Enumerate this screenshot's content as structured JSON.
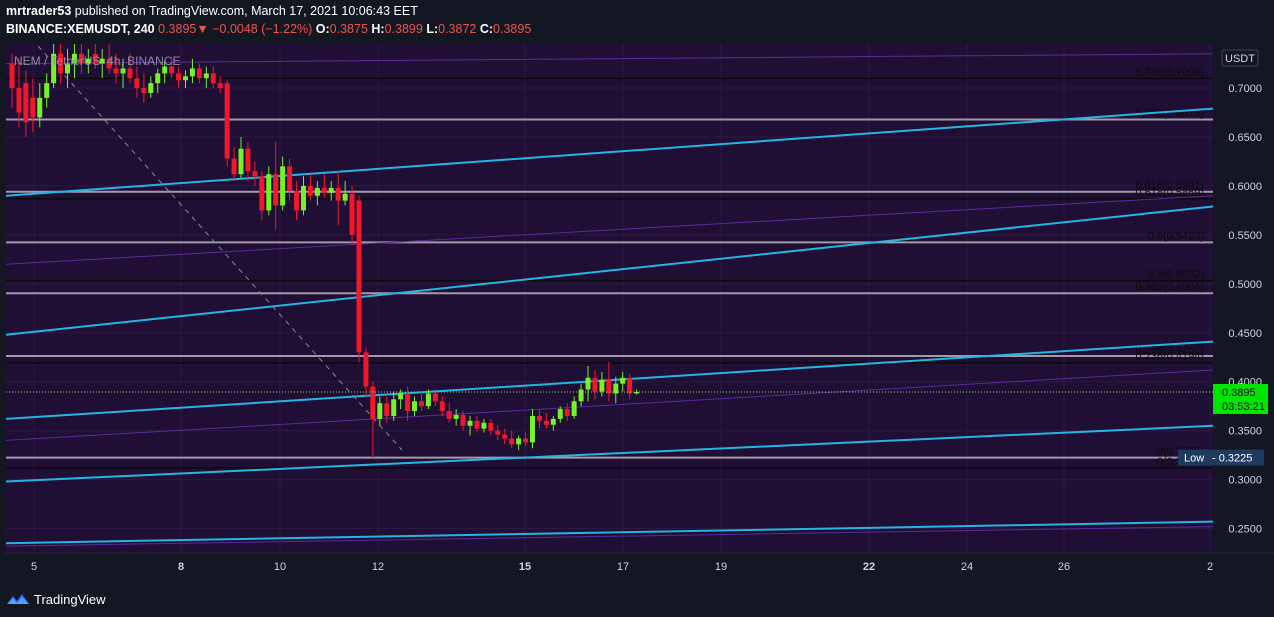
{
  "header": {
    "publisher": "mrtrader53",
    "published_text": " published on TradingView.com, March 17, 2021 10:06:43 EET",
    "symbol": "BINANCE:XEMUSDT, 240",
    "price": "0.3895",
    "change": "−0.0048 (−1.22%)",
    "o_label": "O:",
    "o_value": "0.3875",
    "h_label": "H:",
    "h_value": "0.3899",
    "l_label": "L:",
    "l_value": "0.3872",
    "c_label": "C:",
    "c_value": "0.3895"
  },
  "chart_title": "NEM / TetherUS, 4h, BINANCE",
  "currency_label": "USDT",
  "last_price": {
    "value": "0.3895",
    "countdown": "03:53:21",
    "color": "#00e600"
  },
  "low_label": {
    "label": "Low",
    "value": "0.3225"
  },
  "footer": {
    "brand": "TradingView"
  },
  "chart_data": {
    "type": "candlestick",
    "y_ticks": [
      "0.7000",
      "0.6500",
      "0.6000",
      "0.5500",
      "0.5000",
      "0.4500",
      "0.4000",
      "0.3500",
      "0.3000",
      "0.2500"
    ],
    "x_ticks": [
      "5",
      "8",
      "10",
      "12",
      "15",
      "17",
      "19",
      "22",
      "24",
      "26",
      "2"
    ],
    "ylim": [
      0.225,
      0.745
    ],
    "fib_levels": [
      {
        "label": "0.786(0.7099)",
        "value": 0.7099
      },
      {
        "label": "0.786(0.6679)",
        "value": 0.6679
      },
      {
        "label": "0.618(0.5941)",
        "value": 0.5941
      },
      {
        "label": "0.618(0.5869)",
        "value": 0.5869
      },
      {
        "label": "0.5(0.5423)",
        "value": 0.5423
      },
      {
        "label": "0.5(0.5032)",
        "value": 0.5032
      },
      {
        "label": "0.382(0.4904)",
        "value": 0.4904
      },
      {
        "label": "0.236(0.4262)",
        "value": 0.4262
      },
      {
        "label": "0.236(0.4194)",
        "value": 0.4194
      },
      {
        "label": "0(0.3225)",
        "value": 0.3225
      },
      {
        "label": "0(0.3120)",
        "value": 0.312
      }
    ],
    "candles": [
      {
        "o": 0.725,
        "h": 0.735,
        "l": 0.68,
        "c": 0.7
      },
      {
        "o": 0.7,
        "h": 0.73,
        "l": 0.66,
        "c": 0.675
      },
      {
        "o": 0.705,
        "h": 0.718,
        "l": 0.65,
        "c": 0.665
      },
      {
        "o": 0.69,
        "h": 0.71,
        "l": 0.655,
        "c": 0.67
      },
      {
        "o": 0.67,
        "h": 0.705,
        "l": 0.66,
        "c": 0.69
      },
      {
        "o": 0.69,
        "h": 0.715,
        "l": 0.68,
        "c": 0.705
      },
      {
        "o": 0.705,
        "h": 0.745,
        "l": 0.7,
        "c": 0.735
      },
      {
        "o": 0.735,
        "h": 0.745,
        "l": 0.705,
        "c": 0.715
      },
      {
        "o": 0.715,
        "h": 0.74,
        "l": 0.7,
        "c": 0.725
      },
      {
        "o": 0.725,
        "h": 0.745,
        "l": 0.71,
        "c": 0.735
      },
      {
        "o": 0.735,
        "h": 0.745,
        "l": 0.715,
        "c": 0.725
      },
      {
        "o": 0.725,
        "h": 0.74,
        "l": 0.715,
        "c": 0.73
      },
      {
        "o": 0.735,
        "h": 0.745,
        "l": 0.72,
        "c": 0.725
      },
      {
        "o": 0.725,
        "h": 0.74,
        "l": 0.71,
        "c": 0.73
      },
      {
        "o": 0.73,
        "h": 0.745,
        "l": 0.715,
        "c": 0.72
      },
      {
        "o": 0.72,
        "h": 0.735,
        "l": 0.705,
        "c": 0.715
      },
      {
        "o": 0.715,
        "h": 0.73,
        "l": 0.7,
        "c": 0.72
      },
      {
        "o": 0.72,
        "h": 0.735,
        "l": 0.705,
        "c": 0.71
      },
      {
        "o": 0.71,
        "h": 0.722,
        "l": 0.69,
        "c": 0.7
      },
      {
        "o": 0.7,
        "h": 0.715,
        "l": 0.685,
        "c": 0.695
      },
      {
        "o": 0.695,
        "h": 0.712,
        "l": 0.69,
        "c": 0.705
      },
      {
        "o": 0.705,
        "h": 0.72,
        "l": 0.695,
        "c": 0.715
      },
      {
        "o": 0.715,
        "h": 0.728,
        "l": 0.705,
        "c": 0.722
      },
      {
        "o": 0.722,
        "h": 0.73,
        "l": 0.71,
        "c": 0.715
      },
      {
        "o": 0.715,
        "h": 0.722,
        "l": 0.7,
        "c": 0.708
      },
      {
        "o": 0.708,
        "h": 0.718,
        "l": 0.7,
        "c": 0.712
      },
      {
        "o": 0.712,
        "h": 0.73,
        "l": 0.705,
        "c": 0.72
      },
      {
        "o": 0.72,
        "h": 0.725,
        "l": 0.705,
        "c": 0.71
      },
      {
        "o": 0.71,
        "h": 0.722,
        "l": 0.7,
        "c": 0.715
      },
      {
        "o": 0.715,
        "h": 0.722,
        "l": 0.7,
        "c": 0.705
      },
      {
        "o": 0.705,
        "h": 0.712,
        "l": 0.695,
        "c": 0.7
      },
      {
        "o": 0.705,
        "h": 0.708,
        "l": 0.62,
        "c": 0.628
      },
      {
        "o": 0.628,
        "h": 0.64,
        "l": 0.605,
        "c": 0.612
      },
      {
        "o": 0.612,
        "h": 0.65,
        "l": 0.608,
        "c": 0.638
      },
      {
        "o": 0.638,
        "h": 0.645,
        "l": 0.605,
        "c": 0.615
      },
      {
        "o": 0.615,
        "h": 0.625,
        "l": 0.6,
        "c": 0.61
      },
      {
        "o": 0.61,
        "h": 0.615,
        "l": 0.565,
        "c": 0.575
      },
      {
        "o": 0.575,
        "h": 0.62,
        "l": 0.57,
        "c": 0.612
      },
      {
        "o": 0.612,
        "h": 0.645,
        "l": 0.555,
        "c": 0.58
      },
      {
        "o": 0.58,
        "h": 0.63,
        "l": 0.575,
        "c": 0.62
      },
      {
        "o": 0.62,
        "h": 0.628,
        "l": 0.585,
        "c": 0.595
      },
      {
        "o": 0.595,
        "h": 0.605,
        "l": 0.565,
        "c": 0.575
      },
      {
        "o": 0.575,
        "h": 0.61,
        "l": 0.57,
        "c": 0.6
      },
      {
        "o": 0.6,
        "h": 0.612,
        "l": 0.585,
        "c": 0.59
      },
      {
        "o": 0.59,
        "h": 0.605,
        "l": 0.58,
        "c": 0.598
      },
      {
        "o": 0.598,
        "h": 0.612,
        "l": 0.588,
        "c": 0.593
      },
      {
        "o": 0.593,
        "h": 0.605,
        "l": 0.585,
        "c": 0.598
      },
      {
        "o": 0.598,
        "h": 0.615,
        "l": 0.56,
        "c": 0.585
      },
      {
        "o": 0.585,
        "h": 0.605,
        "l": 0.58,
        "c": 0.592
      },
      {
        "o": 0.592,
        "h": 0.6,
        "l": 0.54,
        "c": 0.55
      },
      {
        "o": 0.585,
        "h": 0.59,
        "l": 0.42,
        "c": 0.43
      },
      {
        "o": 0.43,
        "h": 0.435,
        "l": 0.385,
        "c": 0.395
      },
      {
        "o": 0.395,
        "h": 0.4,
        "l": 0.322,
        "c": 0.362
      },
      {
        "o": 0.362,
        "h": 0.385,
        "l": 0.355,
        "c": 0.378
      },
      {
        "o": 0.378,
        "h": 0.385,
        "l": 0.358,
        "c": 0.365
      },
      {
        "o": 0.365,
        "h": 0.39,
        "l": 0.36,
        "c": 0.382
      },
      {
        "o": 0.382,
        "h": 0.392,
        "l": 0.372,
        "c": 0.388
      },
      {
        "o": 0.388,
        "h": 0.395,
        "l": 0.36,
        "c": 0.37
      },
      {
        "o": 0.37,
        "h": 0.385,
        "l": 0.365,
        "c": 0.38
      },
      {
        "o": 0.38,
        "h": 0.39,
        "l": 0.37,
        "c": 0.375
      },
      {
        "o": 0.375,
        "h": 0.392,
        "l": 0.372,
        "c": 0.388
      },
      {
        "o": 0.388,
        "h": 0.392,
        "l": 0.375,
        "c": 0.38
      },
      {
        "o": 0.38,
        "h": 0.385,
        "l": 0.365,
        "c": 0.37
      },
      {
        "o": 0.37,
        "h": 0.378,
        "l": 0.358,
        "c": 0.362
      },
      {
        "o": 0.362,
        "h": 0.372,
        "l": 0.355,
        "c": 0.366
      },
      {
        "o": 0.366,
        "h": 0.37,
        "l": 0.35,
        "c": 0.355
      },
      {
        "o": 0.355,
        "h": 0.365,
        "l": 0.345,
        "c": 0.36
      },
      {
        "o": 0.36,
        "h": 0.365,
        "l": 0.348,
        "c": 0.352
      },
      {
        "o": 0.352,
        "h": 0.362,
        "l": 0.348,
        "c": 0.358
      },
      {
        "o": 0.358,
        "h": 0.362,
        "l": 0.345,
        "c": 0.35
      },
      {
        "o": 0.35,
        "h": 0.356,
        "l": 0.34,
        "c": 0.346
      },
      {
        "o": 0.346,
        "h": 0.352,
        "l": 0.336,
        "c": 0.342
      },
      {
        "o": 0.342,
        "h": 0.35,
        "l": 0.332,
        "c": 0.336
      },
      {
        "o": 0.336,
        "h": 0.345,
        "l": 0.33,
        "c": 0.342
      },
      {
        "o": 0.342,
        "h": 0.348,
        "l": 0.334,
        "c": 0.338
      },
      {
        "o": 0.338,
        "h": 0.372,
        "l": 0.332,
        "c": 0.365
      },
      {
        "o": 0.365,
        "h": 0.372,
        "l": 0.352,
        "c": 0.36
      },
      {
        "o": 0.36,
        "h": 0.368,
        "l": 0.352,
        "c": 0.356
      },
      {
        "o": 0.356,
        "h": 0.365,
        "l": 0.35,
        "c": 0.362
      },
      {
        "o": 0.362,
        "h": 0.375,
        "l": 0.358,
        "c": 0.372
      },
      {
        "o": 0.372,
        "h": 0.378,
        "l": 0.36,
        "c": 0.365
      },
      {
        "o": 0.365,
        "h": 0.385,
        "l": 0.362,
        "c": 0.38
      },
      {
        "o": 0.38,
        "h": 0.398,
        "l": 0.375,
        "c": 0.392
      },
      {
        "o": 0.392,
        "h": 0.416,
        "l": 0.38,
        "c": 0.404
      },
      {
        "o": 0.404,
        "h": 0.412,
        "l": 0.382,
        "c": 0.39
      },
      {
        "o": 0.39,
        "h": 0.41,
        "l": 0.385,
        "c": 0.402
      },
      {
        "o": 0.402,
        "h": 0.42,
        "l": 0.38,
        "c": 0.388
      },
      {
        "o": 0.388,
        "h": 0.405,
        "l": 0.378,
        "c": 0.398
      },
      {
        "o": 0.398,
        "h": 0.41,
        "l": 0.39,
        "c": 0.404
      },
      {
        "o": 0.404,
        "h": 0.408,
        "l": 0.382,
        "c": 0.388
      },
      {
        "o": 0.388,
        "h": 0.392,
        "l": 0.387,
        "c": 0.3895
      }
    ],
    "trend_channels": [
      {
        "x0": 0,
        "y0": 0.59,
        "x1": 1.0,
        "y1": 0.679
      },
      {
        "x0": 0,
        "y0": 0.448,
        "x1": 1.0,
        "y1": 0.579
      },
      {
        "x0": 0,
        "y0": 0.362,
        "x1": 1.0,
        "y1": 0.441
      },
      {
        "x0": 0,
        "y0": 0.298,
        "x1": 1.0,
        "y1": 0.355
      },
      {
        "x0": 0,
        "y0": 0.235,
        "x1": 1.0,
        "y1": 0.257
      }
    ]
  }
}
